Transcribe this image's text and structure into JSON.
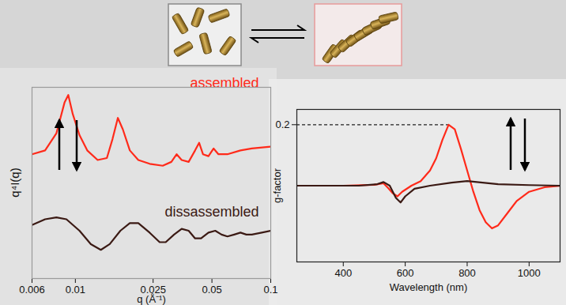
{
  "chart_data": [
    {
      "type": "line",
      "x_label": "q (Å⁻¹)",
      "y_label": "q⁴I(q)",
      "log": "x",
      "xlim": [
        0.006,
        0.1
      ],
      "xticks": [
        0.006,
        0.01,
        0.025,
        0.05,
        0.1
      ],
      "ylim": [
        0,
        1
      ],
      "tick_labels": "x",
      "series": [
        {
          "name": "assembled",
          "color": "#ff2a1a",
          "x": [
            0.006,
            0.007,
            0.008,
            0.0088,
            0.0092,
            0.0097,
            0.0105,
            0.0115,
            0.013,
            0.0145,
            0.0155,
            0.0165,
            0.0175,
            0.019,
            0.021,
            0.024,
            0.028,
            0.031,
            0.033,
            0.035,
            0.038,
            0.041,
            0.043,
            0.045,
            0.048,
            0.051,
            0.054,
            0.06,
            0.07,
            0.08,
            0.1
          ],
          "values": [
            0.65,
            0.67,
            0.76,
            0.92,
            0.96,
            0.86,
            0.75,
            0.67,
            0.62,
            0.63,
            0.73,
            0.84,
            0.78,
            0.67,
            0.62,
            0.6,
            0.59,
            0.61,
            0.65,
            0.62,
            0.61,
            0.67,
            0.71,
            0.65,
            0.64,
            0.68,
            0.65,
            0.65,
            0.67,
            0.68,
            0.69
          ]
        },
        {
          "name": "dissassembled",
          "color": "#3b1a14",
          "x": [
            0.006,
            0.007,
            0.008,
            0.009,
            0.0105,
            0.012,
            0.0135,
            0.015,
            0.017,
            0.019,
            0.021,
            0.024,
            0.027,
            0.029,
            0.032,
            0.035,
            0.038,
            0.041,
            0.044,
            0.048,
            0.052,
            0.056,
            0.06,
            0.065,
            0.07,
            0.075,
            0.08,
            0.09,
            0.1
          ],
          "values": [
            0.28,
            0.31,
            0.32,
            0.31,
            0.25,
            0.18,
            0.15,
            0.18,
            0.25,
            0.29,
            0.29,
            0.24,
            0.19,
            0.19,
            0.23,
            0.26,
            0.25,
            0.21,
            0.21,
            0.24,
            0.25,
            0.23,
            0.22,
            0.23,
            0.24,
            0.23,
            0.23,
            0.24,
            0.25
          ]
        }
      ]
    },
    {
      "type": "line",
      "x_label": "Wavelength (nm)",
      "y_label": "g-factor",
      "xlim": [
        250,
        1100
      ],
      "xticks": [
        400,
        600,
        800,
        1000
      ],
      "ylim": [
        -0.25,
        0.25
      ],
      "yticks": [
        0.2
      ],
      "series": [
        {
          "color": "#ff2a1a",
          "x": [
            250,
            400,
            500,
            530,
            545,
            560,
            575,
            590,
            620,
            650,
            680,
            700,
            720,
            740,
            760,
            780,
            800,
            820,
            840,
            860,
            880,
            900,
            930,
            960,
            1000,
            1050,
            1100
          ],
          "values": [
            0,
            0,
            0.003,
            0.008,
            -0.008,
            -0.025,
            -0.035,
            -0.02,
            0,
            0.015,
            0.05,
            0.09,
            0.15,
            0.2,
            0.185,
            0.12,
            0.05,
            -0.02,
            -0.08,
            -0.12,
            -0.14,
            -0.13,
            -0.09,
            -0.05,
            -0.02,
            -0.005,
            0
          ]
        },
        {
          "color": "#3b1a14",
          "x": [
            250,
            450,
            510,
            530,
            550,
            570,
            585,
            600,
            630,
            680,
            750,
            800,
            850,
            900,
            1000,
            1100
          ],
          "values": [
            0,
            0,
            0.005,
            0.012,
            0,
            -0.04,
            -0.055,
            -0.035,
            -0.01,
            0,
            0.01,
            0.015,
            0.01,
            0.005,
            0.002,
            0
          ]
        }
      ]
    }
  ]
}
